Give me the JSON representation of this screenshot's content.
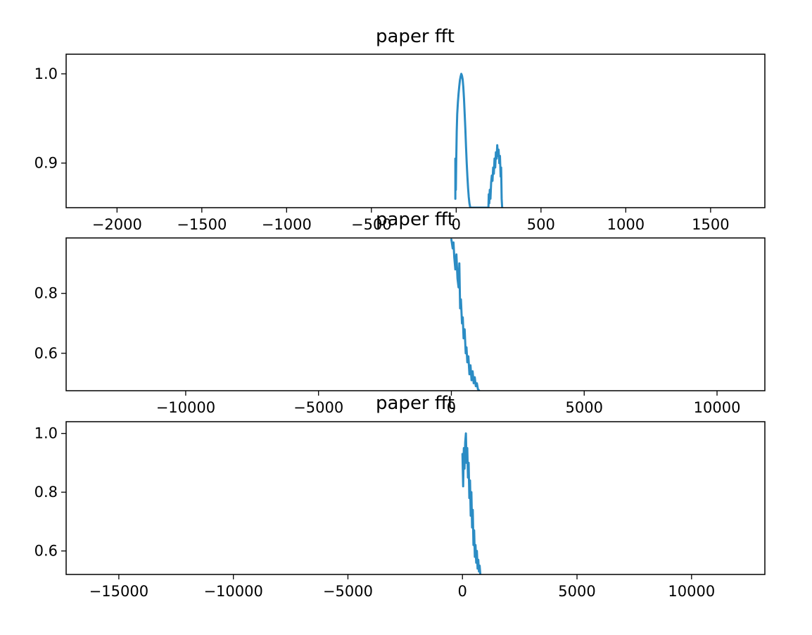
{
  "colors": {
    "series": "#2b8cc4"
  },
  "chart_data": [
    {
      "type": "line",
      "title": "paper fft",
      "xlabel": "",
      "ylabel": "",
      "xlim": [
        -2300,
        1820
      ],
      "ylim": [
        0.85,
        1.022
      ],
      "xticks": [
        -2000,
        -1500,
        -1000,
        -500,
        0,
        500,
        1000,
        1500
      ],
      "xtick_labels": [
        "−2000",
        "−1500",
        "−1000",
        "−500",
        "0",
        "500",
        "1000",
        "1500"
      ],
      "yticks": [
        0.9,
        1.0
      ],
      "ytick_labels": [
        "0.9",
        "1.0"
      ],
      "grid": false,
      "x": [
        -5,
        -5,
        -2,
        0,
        3,
        6,
        10,
        14,
        18,
        22,
        26,
        30,
        34,
        38,
        42,
        46,
        50,
        54,
        58,
        62,
        66,
        70,
        74,
        78,
        82,
        86,
        88,
        190,
        192,
        195,
        198,
        202,
        206,
        210,
        214,
        218,
        222,
        226,
        230,
        234,
        238,
        242,
        246,
        250,
        254,
        258,
        262,
        265,
        268,
        271
      ],
      "y": [
        0.86,
        0.905,
        0.87,
        0.9,
        0.935,
        0.955,
        0.968,
        0.978,
        0.986,
        0.993,
        0.997,
        1.0,
        0.998,
        0.994,
        0.985,
        0.972,
        0.955,
        0.938,
        0.918,
        0.9,
        0.885,
        0.872,
        0.862,
        0.855,
        0.851,
        0.85,
        0.85,
        0.85,
        0.865,
        0.855,
        0.87,
        0.86,
        0.878,
        0.886,
        0.88,
        0.895,
        0.888,
        0.905,
        0.895,
        0.912,
        0.905,
        0.92,
        0.908,
        0.915,
        0.9,
        0.908,
        0.885,
        0.895,
        0.86,
        0.85
      ]
    },
    {
      "type": "line",
      "title": "paper fft",
      "xlabel": "",
      "ylabel": "",
      "xlim": [
        -14500,
        11800
      ],
      "ylim": [
        0.475,
        0.985
      ],
      "xticks": [
        -10000,
        -5000,
        0,
        5000,
        10000
      ],
      "xtick_labels": [
        "−10000",
        "−5000",
        "0",
        "5000",
        "10000"
      ],
      "yticks": [
        0.6,
        0.8
      ],
      "ytick_labels": [
        "0.6",
        "0.8"
      ],
      "grid": false,
      "x": [
        0,
        50,
        80,
        110,
        150,
        190,
        230,
        270,
        300,
        330,
        360,
        400,
        430,
        460,
        500,
        540,
        570,
        600,
        640,
        680,
        720,
        760,
        800,
        840,
        880,
        920,
        960,
        1000,
        1050
      ],
      "y": [
        0.98,
        0.95,
        0.97,
        0.92,
        0.88,
        0.93,
        0.85,
        0.82,
        0.9,
        0.75,
        0.78,
        0.7,
        0.72,
        0.65,
        0.68,
        0.6,
        0.62,
        0.57,
        0.59,
        0.53,
        0.56,
        0.51,
        0.54,
        0.5,
        0.52,
        0.49,
        0.5,
        0.48,
        0.475
      ]
    },
    {
      "type": "line",
      "title": "paper fft",
      "xlabel": "",
      "ylabel": "",
      "xlim": [
        -17300,
        13200
      ],
      "ylim": [
        0.52,
        1.04
      ],
      "xticks": [
        -15000,
        -10000,
        -5000,
        0,
        5000,
        10000
      ],
      "xtick_labels": [
        "−15000",
        "−10000",
        "−5000",
        "0",
        "5000",
        "10000"
      ],
      "yticks": [
        0.6,
        0.8,
        1.0
      ],
      "ytick_labels": [
        "0.6",
        "0.8",
        "1.0"
      ],
      "grid": false,
      "x": [
        0,
        30,
        60,
        90,
        120,
        150,
        180,
        210,
        240,
        270,
        300,
        330,
        360,
        390,
        420,
        450,
        480,
        510,
        540,
        570,
        600,
        630,
        660,
        690,
        720,
        750,
        780
      ],
      "y": [
        0.93,
        0.82,
        0.95,
        0.88,
        0.97,
        1.0,
        0.9,
        0.95,
        0.85,
        0.9,
        0.78,
        0.84,
        0.72,
        0.8,
        0.68,
        0.74,
        0.62,
        0.67,
        0.58,
        0.62,
        0.56,
        0.6,
        0.54,
        0.57,
        0.53,
        0.55,
        0.52
      ]
    }
  ]
}
